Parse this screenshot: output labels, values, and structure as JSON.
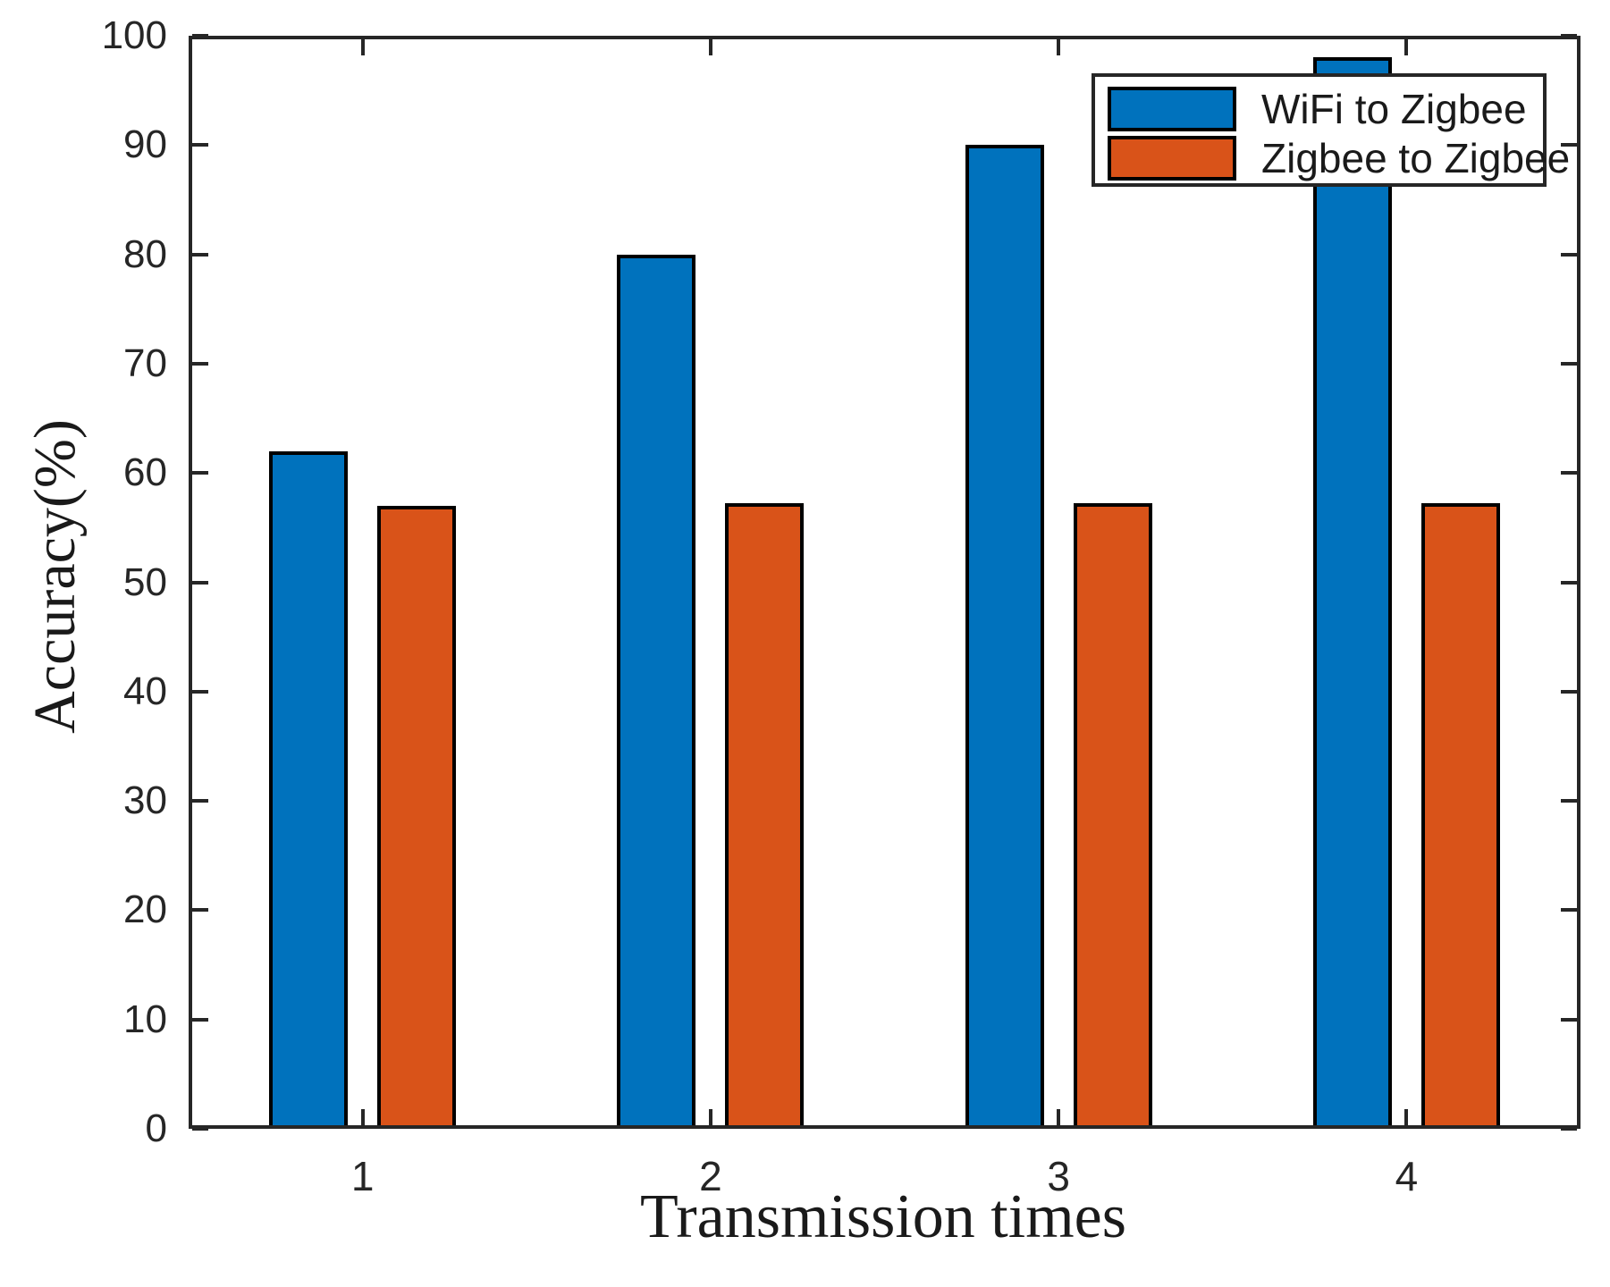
{
  "figure": {
    "background": "#ffffff",
    "axis_color": "#262626",
    "bar_edge_color": "#000000"
  },
  "chart_data": {
    "type": "bar",
    "title": "",
    "xlabel": "Transmission times",
    "ylabel": "Accuracy(%)",
    "categories": [
      "1",
      "2",
      "3",
      "4"
    ],
    "series": [
      {
        "name": "WiFi to Zigbee",
        "color": "#0072BD",
        "values": [
          62,
          80,
          90,
          98
        ]
      },
      {
        "name": "Zigbee to Zigbee",
        "color": "#D95319",
        "values": [
          57,
          57.2,
          57.2,
          57.2
        ]
      }
    ],
    "ylim": [
      0,
      100
    ],
    "yticks": [
      0,
      10,
      20,
      30,
      40,
      50,
      60,
      70,
      80,
      90,
      100
    ],
    "grid": false,
    "legend_position": "top-right",
    "legend_entries": [
      "WiFi to Zigbee",
      "Zigbee to Zigbee"
    ]
  }
}
